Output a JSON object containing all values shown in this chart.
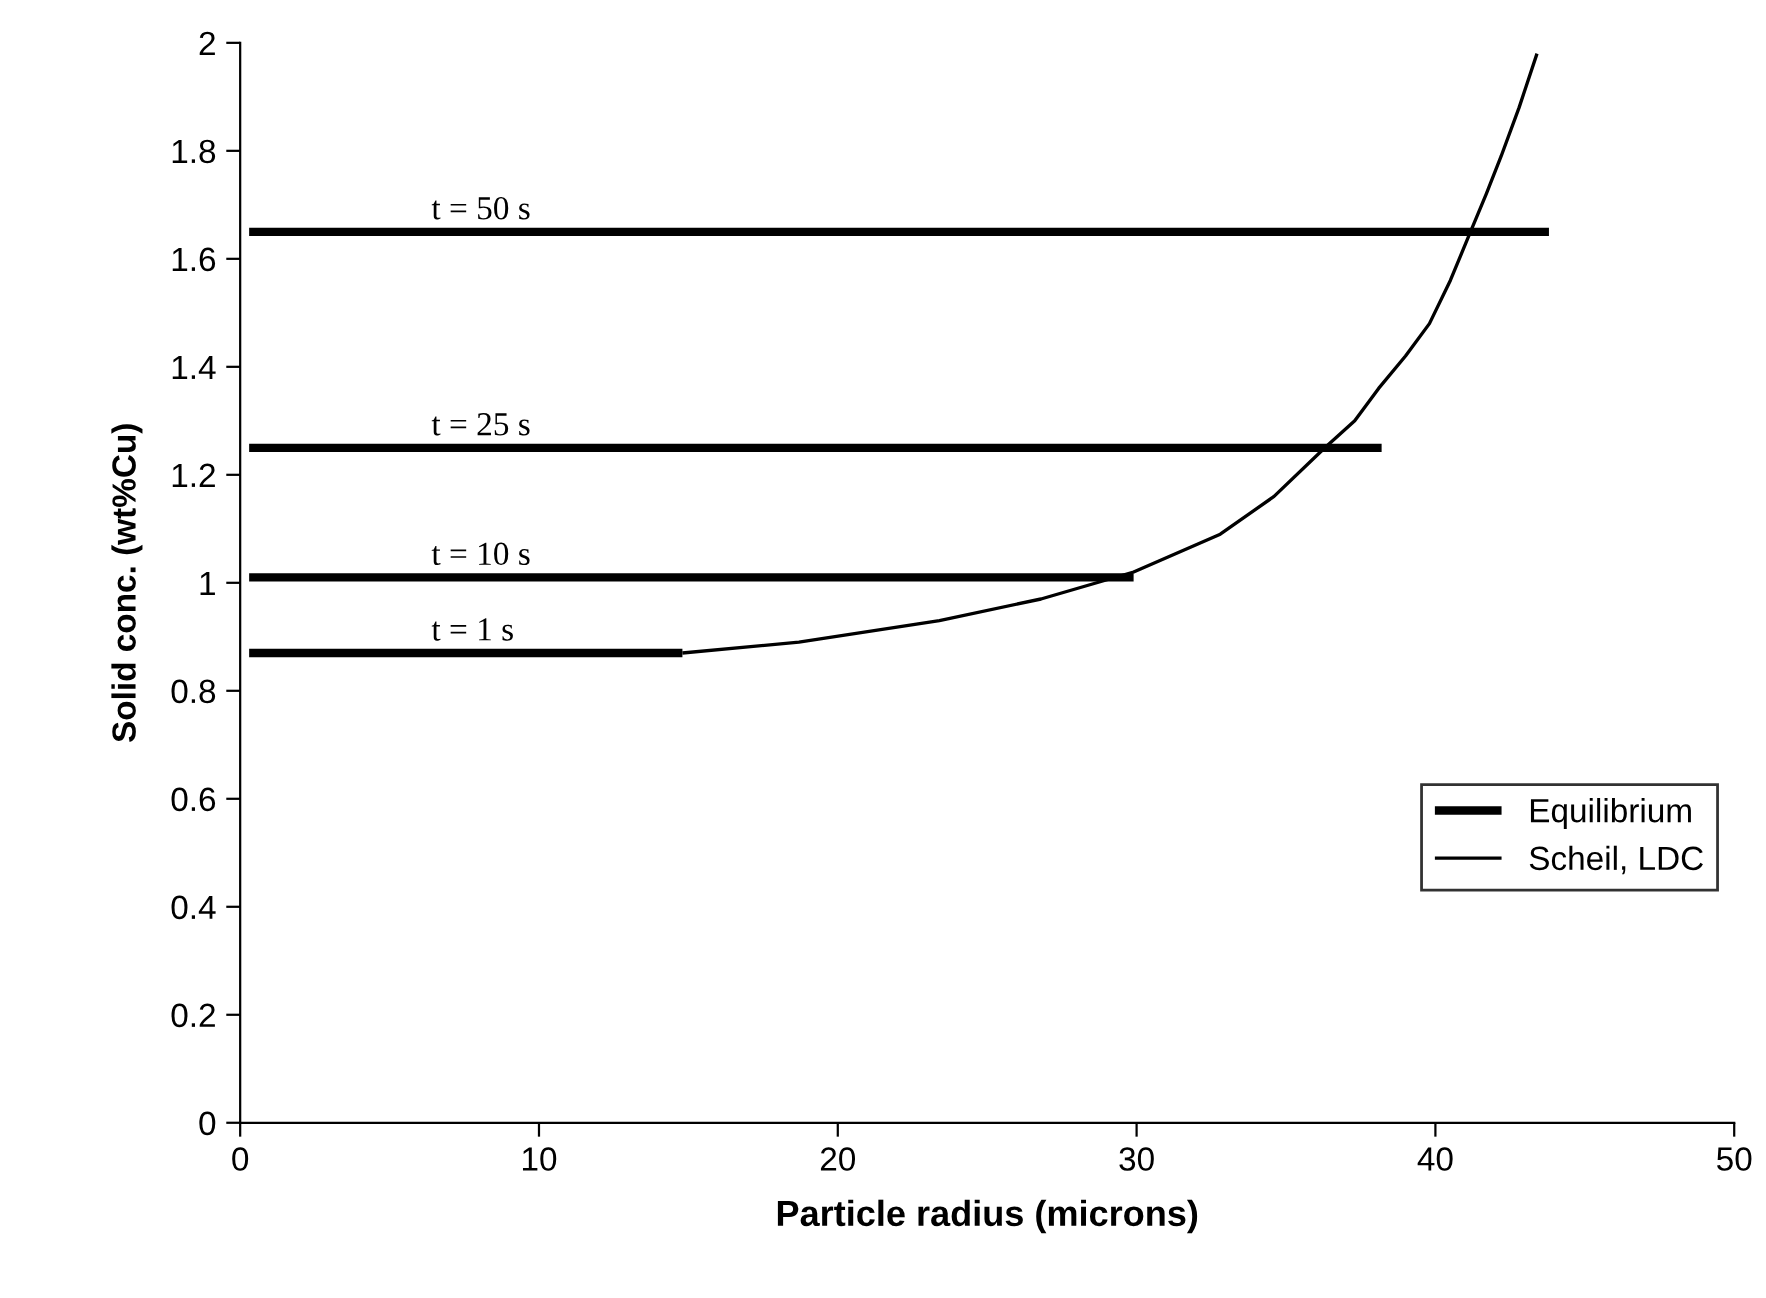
{
  "chart_data": {
    "type": "line",
    "xlabel": "Particle radius (microns)",
    "ylabel": "Solid conc. (wt%Cu)",
    "xlim": [
      0,
      50
    ],
    "xticks": [
      0,
      10,
      20,
      30,
      40,
      50
    ],
    "ylim": [
      0,
      2
    ],
    "yticks": [
      0,
      0.2,
      0.4,
      0.6,
      0.8,
      1,
      1.2,
      1.4,
      1.6,
      1.8,
      2
    ],
    "grid": false,
    "legend": "bottom right",
    "marker": "none",
    "line_style": "solid",
    "series": [
      {
        "name": "Equilibrium",
        "color": "#000000",
        "x": [
          0.3,
          43.8
        ],
        "values": [
          1.65,
          1.65
        ]
      },
      {
        "color": "#000000",
        "x": [
          0.3,
          38.2
        ],
        "values": [
          1.25,
          1.25
        ]
      },
      {
        "color": "#000000",
        "x": [
          0.3,
          29.9
        ],
        "values": [
          1.01,
          1.01
        ]
      },
      {
        "color": "#000000",
        "x": [
          0.3,
          14.8
        ],
        "values": [
          0.87,
          0.87
        ]
      },
      {
        "name": "Scheil, LDC",
        "color": "#000000",
        "x": [
          14.8,
          18.7,
          23.4,
          26.8,
          29.9,
          32.8,
          34.6,
          36.3,
          37.3,
          38.1,
          39.0,
          39.8,
          40.5,
          41.1,
          41.7,
          42.2,
          42.8,
          43.4
        ],
        "values": [
          0.87,
          0.89,
          0.93,
          0.97,
          1.02,
          1.09,
          1.16,
          1.25,
          1.3,
          1.36,
          1.42,
          1.48,
          1.56,
          1.64,
          1.72,
          1.79,
          1.88,
          1.98
        ]
      }
    ],
    "annotations": [
      {
        "text": "t = 50 s",
        "y": 1.65
      },
      {
        "text": "t = 25 s",
        "y": 1.25
      },
      {
        "text": "t = 10 s",
        "y": 1.01
      },
      {
        "text": "t = 1 s",
        "y": 0.87
      }
    ]
  }
}
